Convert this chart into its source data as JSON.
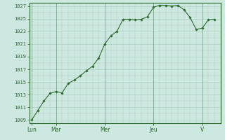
{
  "x_values": [
    0,
    0.5,
    1,
    1.5,
    2,
    2.5,
    3,
    3.5,
    4,
    4.5,
    5,
    5.5,
    6,
    6.5,
    7,
    7.5,
    8,
    8.5,
    9,
    9.5,
    10,
    10.5,
    11,
    11.5,
    12,
    12.5,
    13,
    13.5,
    14,
    14.5,
    15
  ],
  "y_values": [
    1009,
    1010.5,
    1012,
    1013.2,
    1013.5,
    1013.3,
    1014.8,
    1015.3,
    1016.0,
    1016.8,
    1017.5,
    1018.8,
    1021.0,
    1022.3,
    1023.0,
    1024.9,
    1024.9,
    1024.8,
    1024.9,
    1025.3,
    1026.8,
    1027.1,
    1027.1,
    1027.0,
    1027.1,
    1026.4,
    1025.2,
    1023.3,
    1023.5,
    1024.8,
    1024.9
  ],
  "x_tick_positions": [
    0,
    2,
    6,
    10,
    14
  ],
  "x_tick_labels": [
    "Lun",
    "Mar",
    "Mer",
    "Jeu",
    "V"
  ],
  "x_vlines": [
    0,
    2,
    6,
    10,
    14
  ],
  "ylim_min": 1008.5,
  "ylim_max": 1027.5,
  "ytick_min": 1009,
  "ytick_max": 1027,
  "ytick_step": 2,
  "line_color": "#2d6a2d",
  "marker": "D",
  "marker_size": 1.8,
  "bg_color": "#cde8e0",
  "grid_color": "#aac8bb",
  "axis_color": "#2d6a2d",
  "tick_color": "#2d6a2d",
  "label_color": "#2d6a2d",
  "figsize": [
    3.2,
    2.0
  ],
  "dpi": 100
}
